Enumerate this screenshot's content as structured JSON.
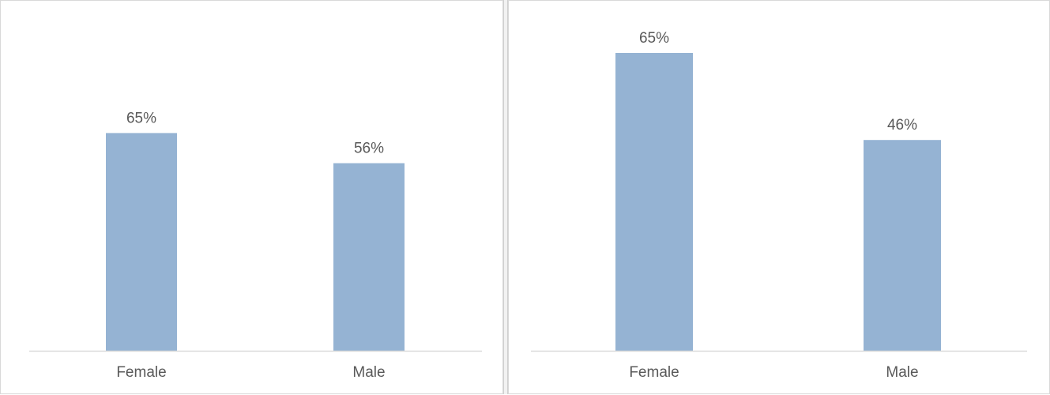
{
  "colors": {
    "bar": "#95b3d3",
    "axis": "#d9d9d9",
    "text": "#595959"
  },
  "chart_data": [
    {
      "type": "bar",
      "categories": [
        "Female",
        "Male"
      ],
      "values": [
        65,
        56
      ],
      "data_labels": [
        "65%",
        "56%"
      ],
      "ylim": [
        0,
        100
      ],
      "grid": false
    },
    {
      "type": "bar",
      "categories": [
        "Female",
        "Male"
      ],
      "values": [
        65,
        46
      ],
      "data_labels": [
        "65%",
        "46%"
      ],
      "ylim": [
        0,
        70
      ],
      "grid": false
    }
  ]
}
